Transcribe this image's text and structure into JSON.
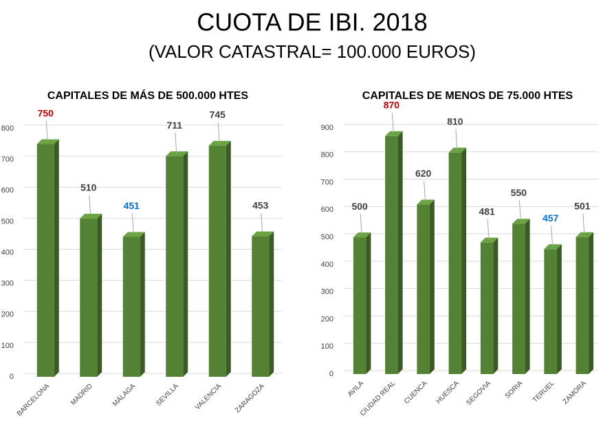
{
  "title": "CUOTA DE IBI. 2018",
  "subtitle": "(VALOR CATASTRAL= 100.000 EUROS)",
  "chart_data": [
    {
      "type": "bar",
      "title": "CAPITALES DE MÁS DE 500.000 HTES",
      "categories": [
        "BARCELONA",
        "MADRID",
        "MÁLAGA",
        "SEVILLA",
        "VALENCIA",
        "ZARAGOZA"
      ],
      "values": [
        750,
        510,
        451,
        711,
        745,
        453
      ],
      "value_label_colors": [
        "#c00000",
        "#404040",
        "#0070c0",
        "#404040",
        "#404040",
        "#404040"
      ],
      "color": "#548235",
      "ylim": [
        0,
        800
      ],
      "yticks": [
        0,
        100,
        200,
        300,
        400,
        500,
        600,
        700,
        800
      ],
      "grid": true
    },
    {
      "type": "bar",
      "title": "CAPITALES DE MENOS DE 75.000 HTES",
      "categories": [
        "AVILA",
        "CIUDAD REAL",
        "CUENCA",
        "HUESCA",
        "SEGOVIA",
        "SORIA",
        "TERUEL",
        "ZAMORA"
      ],
      "values": [
        500,
        870,
        620,
        810,
        481,
        550,
        457,
        501
      ],
      "value_label_colors": [
        "#404040",
        "#c00000",
        "#404040",
        "#404040",
        "#404040",
        "#404040",
        "#0070c0",
        "#404040"
      ],
      "color": "#548235",
      "ylim": [
        0,
        900
      ],
      "yticks": [
        0,
        100,
        200,
        300,
        400,
        500,
        600,
        700,
        800,
        900
      ],
      "grid": true
    }
  ]
}
